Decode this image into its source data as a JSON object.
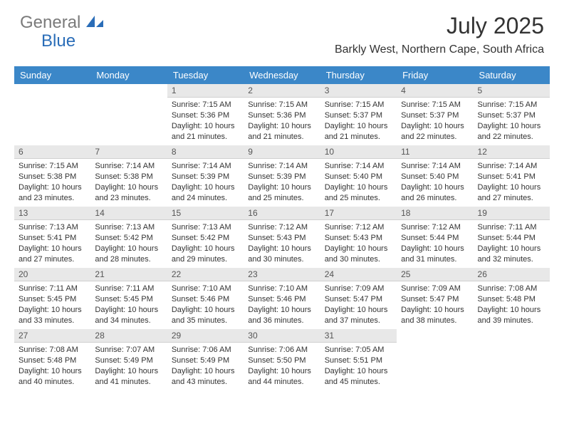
{
  "brand": {
    "part1": "General",
    "part2": "Blue"
  },
  "title": "July 2025",
  "location": "Barkly West, Northern Cape, South Africa",
  "colors": {
    "header_bg": "#3b87c8",
    "header_text": "#ffffff",
    "daynum_bg": "#e8e8e8",
    "body_text": "#333333",
    "logo_gray": "#7a7a7a",
    "logo_blue": "#2a6db8"
  },
  "weekdays": [
    "Sunday",
    "Monday",
    "Tuesday",
    "Wednesday",
    "Thursday",
    "Friday",
    "Saturday"
  ],
  "layout": {
    "first_weekday_index": 2,
    "days_in_month": 31
  },
  "days": [
    {
      "n": 1,
      "sunrise": "7:15 AM",
      "sunset": "5:36 PM",
      "daylight": "10 hours and 21 minutes."
    },
    {
      "n": 2,
      "sunrise": "7:15 AM",
      "sunset": "5:36 PM",
      "daylight": "10 hours and 21 minutes."
    },
    {
      "n": 3,
      "sunrise": "7:15 AM",
      "sunset": "5:37 PM",
      "daylight": "10 hours and 21 minutes."
    },
    {
      "n": 4,
      "sunrise": "7:15 AM",
      "sunset": "5:37 PM",
      "daylight": "10 hours and 22 minutes."
    },
    {
      "n": 5,
      "sunrise": "7:15 AM",
      "sunset": "5:37 PM",
      "daylight": "10 hours and 22 minutes."
    },
    {
      "n": 6,
      "sunrise": "7:15 AM",
      "sunset": "5:38 PM",
      "daylight": "10 hours and 23 minutes."
    },
    {
      "n": 7,
      "sunrise": "7:14 AM",
      "sunset": "5:38 PM",
      "daylight": "10 hours and 23 minutes."
    },
    {
      "n": 8,
      "sunrise": "7:14 AM",
      "sunset": "5:39 PM",
      "daylight": "10 hours and 24 minutes."
    },
    {
      "n": 9,
      "sunrise": "7:14 AM",
      "sunset": "5:39 PM",
      "daylight": "10 hours and 25 minutes."
    },
    {
      "n": 10,
      "sunrise": "7:14 AM",
      "sunset": "5:40 PM",
      "daylight": "10 hours and 25 minutes."
    },
    {
      "n": 11,
      "sunrise": "7:14 AM",
      "sunset": "5:40 PM",
      "daylight": "10 hours and 26 minutes."
    },
    {
      "n": 12,
      "sunrise": "7:14 AM",
      "sunset": "5:41 PM",
      "daylight": "10 hours and 27 minutes."
    },
    {
      "n": 13,
      "sunrise": "7:13 AM",
      "sunset": "5:41 PM",
      "daylight": "10 hours and 27 minutes."
    },
    {
      "n": 14,
      "sunrise": "7:13 AM",
      "sunset": "5:42 PM",
      "daylight": "10 hours and 28 minutes."
    },
    {
      "n": 15,
      "sunrise": "7:13 AM",
      "sunset": "5:42 PM",
      "daylight": "10 hours and 29 minutes."
    },
    {
      "n": 16,
      "sunrise": "7:12 AM",
      "sunset": "5:43 PM",
      "daylight": "10 hours and 30 minutes."
    },
    {
      "n": 17,
      "sunrise": "7:12 AM",
      "sunset": "5:43 PM",
      "daylight": "10 hours and 30 minutes."
    },
    {
      "n": 18,
      "sunrise": "7:12 AM",
      "sunset": "5:44 PM",
      "daylight": "10 hours and 31 minutes."
    },
    {
      "n": 19,
      "sunrise": "7:11 AM",
      "sunset": "5:44 PM",
      "daylight": "10 hours and 32 minutes."
    },
    {
      "n": 20,
      "sunrise": "7:11 AM",
      "sunset": "5:45 PM",
      "daylight": "10 hours and 33 minutes."
    },
    {
      "n": 21,
      "sunrise": "7:11 AM",
      "sunset": "5:45 PM",
      "daylight": "10 hours and 34 minutes."
    },
    {
      "n": 22,
      "sunrise": "7:10 AM",
      "sunset": "5:46 PM",
      "daylight": "10 hours and 35 minutes."
    },
    {
      "n": 23,
      "sunrise": "7:10 AM",
      "sunset": "5:46 PM",
      "daylight": "10 hours and 36 minutes."
    },
    {
      "n": 24,
      "sunrise": "7:09 AM",
      "sunset": "5:47 PM",
      "daylight": "10 hours and 37 minutes."
    },
    {
      "n": 25,
      "sunrise": "7:09 AM",
      "sunset": "5:47 PM",
      "daylight": "10 hours and 38 minutes."
    },
    {
      "n": 26,
      "sunrise": "7:08 AM",
      "sunset": "5:48 PM",
      "daylight": "10 hours and 39 minutes."
    },
    {
      "n": 27,
      "sunrise": "7:08 AM",
      "sunset": "5:48 PM",
      "daylight": "10 hours and 40 minutes."
    },
    {
      "n": 28,
      "sunrise": "7:07 AM",
      "sunset": "5:49 PM",
      "daylight": "10 hours and 41 minutes."
    },
    {
      "n": 29,
      "sunrise": "7:06 AM",
      "sunset": "5:49 PM",
      "daylight": "10 hours and 43 minutes."
    },
    {
      "n": 30,
      "sunrise": "7:06 AM",
      "sunset": "5:50 PM",
      "daylight": "10 hours and 44 minutes."
    },
    {
      "n": 31,
      "sunrise": "7:05 AM",
      "sunset": "5:51 PM",
      "daylight": "10 hours and 45 minutes."
    }
  ],
  "labels": {
    "sunrise": "Sunrise:",
    "sunset": "Sunset:",
    "daylight": "Daylight:"
  }
}
